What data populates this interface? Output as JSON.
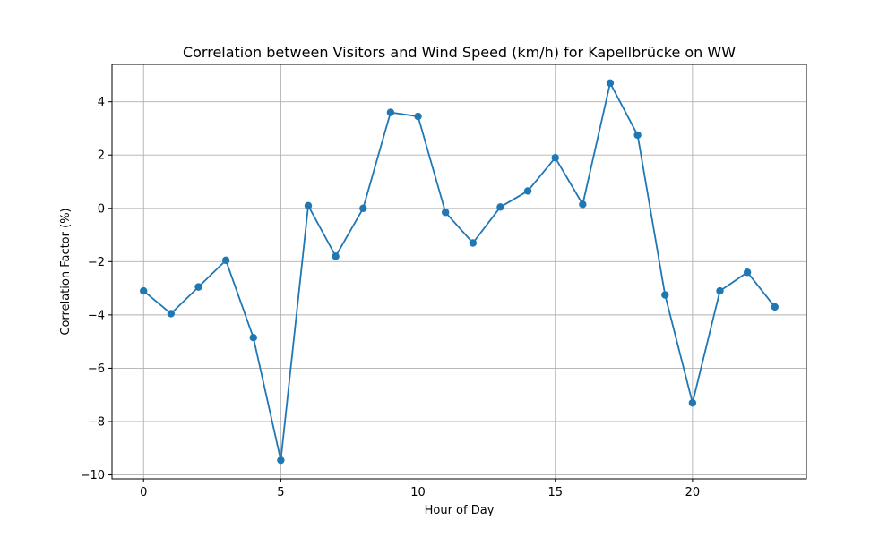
{
  "chart_data": {
    "type": "line",
    "title": "Correlation between Visitors and Wind Speed (km/h) for Kapellbrücke on WW",
    "xlabel": "Hour of Day",
    "ylabel": "Correlation Factor (%)",
    "xlim": [
      -1.15,
      24.15
    ],
    "ylim": [
      -10.15,
      5.4
    ],
    "xticks": [
      0,
      5,
      10,
      15,
      20
    ],
    "yticks": [
      -10,
      -8,
      -6,
      -4,
      -2,
      0,
      2,
      4
    ],
    "grid": true,
    "color": "#1f77b4",
    "series": [
      {
        "x": [
          0,
          1,
          2,
          3,
          4,
          5,
          6,
          7,
          8,
          9,
          10,
          11,
          12,
          13,
          14,
          15,
          16,
          17,
          18,
          19,
          20,
          21,
          22,
          23
        ],
        "y": [
          -3.1,
          -3.95,
          -2.95,
          -1.95,
          -4.85,
          -9.45,
          0.1,
          -1.8,
          0.0,
          3.6,
          3.45,
          -0.15,
          -1.3,
          0.05,
          0.65,
          1.9,
          0.15,
          4.7,
          2.75,
          -3.25,
          -7.3,
          -3.1,
          -2.4,
          -3.7
        ]
      }
    ]
  }
}
